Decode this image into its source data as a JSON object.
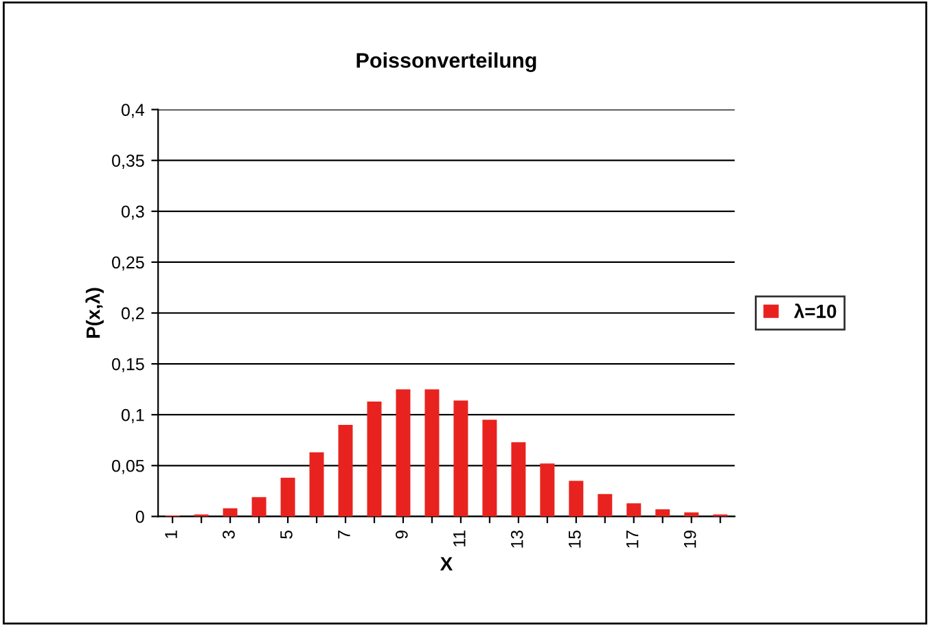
{
  "chart_data": {
    "type": "bar",
    "title": "Poissonverteilung",
    "xlabel": "X",
    "ylabel": "P(x,λ)",
    "categories": [
      "1",
      null,
      "3",
      null,
      "5",
      null,
      "7",
      null,
      "9",
      null,
      "11",
      null,
      "13",
      null,
      "15",
      null,
      "17",
      null,
      "19",
      null
    ],
    "series": [
      {
        "name": "λ=10",
        "color": "#e8231f",
        "values": [
          0.001,
          0.002,
          0.008,
          0.019,
          0.038,
          0.063,
          0.09,
          0.113,
          0.125,
          0.125,
          0.114,
          0.095,
          0.073,
          0.052,
          0.035,
          0.022,
          0.013,
          0.007,
          0.004,
          0.002
        ]
      }
    ],
    "ylim": [
      0,
      0.4
    ],
    "yticks": [
      0,
      {
        "value": 0.05,
        "label": "0,05"
      },
      {
        "value": 0.1,
        "label": "0,1"
      },
      {
        "value": 0.15,
        "label": "0,15"
      },
      {
        "value": 0.2,
        "label": "0,2"
      },
      {
        "value": 0.25,
        "label": "0,25"
      },
      {
        "value": 0.3,
        "label": "0,3"
      },
      {
        "value": 0.35,
        "label": "0,35"
      },
      {
        "value": 0.4,
        "label": "0,4"
      }
    ],
    "grid": "y",
    "legend": "right"
  }
}
